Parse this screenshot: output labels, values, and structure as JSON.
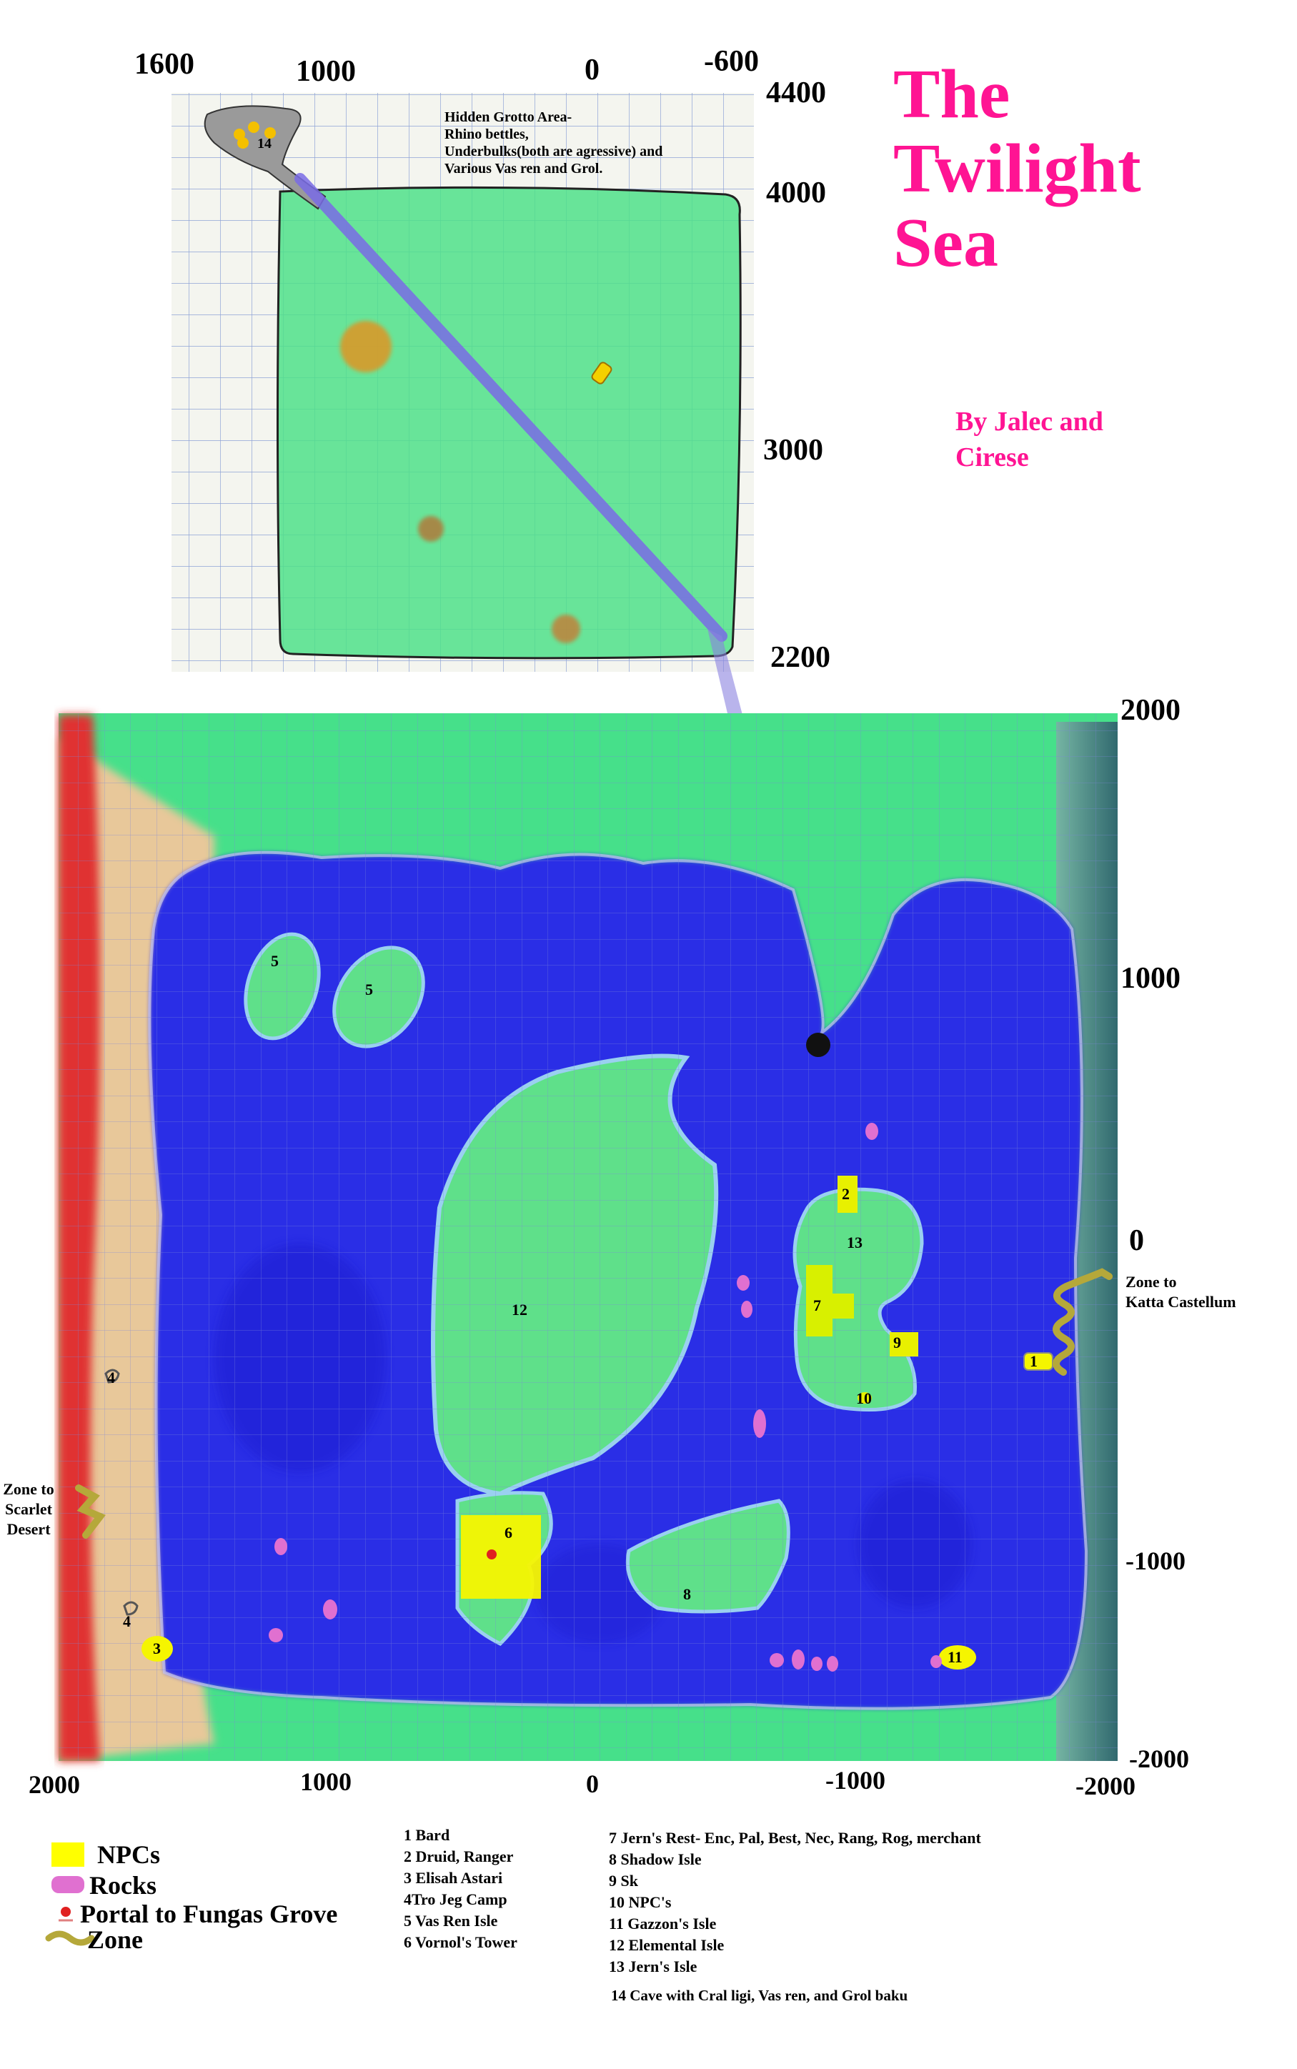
{
  "title": [
    "The",
    "Twilight",
    "Sea"
  ],
  "authors": [
    "By Jalec and",
    "Cirese"
  ],
  "top_map": {
    "x_labels": [
      "1600",
      "1000",
      "0",
      "-600"
    ],
    "y_labels": [
      "4400",
      "4000",
      "3000",
      "2200"
    ],
    "note": [
      "Hidden Grotto Area-",
      "Rhino bettles,",
      "Underbulks(both are agressive) and",
      "Various Vas ren and Grol."
    ],
    "cave_label": "14"
  },
  "main_map": {
    "top_y_labels": [
      "2000",
      "1000",
      "0",
      "-1000",
      "-2000"
    ],
    "bottom_x_labels": [
      "2000",
      "1000",
      "0",
      "-1000",
      "-2000"
    ],
    "zone_right": [
      "Zone to",
      "Katta Castellum"
    ],
    "zone_left": [
      "Zone to",
      "Scarlet",
      "Desert"
    ],
    "markers": {
      "m1": "1",
      "m2": "2",
      "m3": "3",
      "m4a": "4",
      "m4b": "4",
      "m5a": "5",
      "m5b": "5",
      "m6": "6",
      "m7": "7",
      "m8": "8",
      "m9": "9",
      "m10": "10",
      "m11": "11",
      "m12": "12",
      "m13": "13"
    }
  },
  "legend": {
    "npcs": "NPCs",
    "rocks": "Rocks",
    "portal": "Portal to Fungas Grove",
    "zone": "Zone"
  },
  "locations_left": [
    "1 Bard",
    "2 Druid, Ranger",
    "3 Elisah Astari",
    "4Tro Jeg Camp",
    "5 Vas Ren Isle",
    "6 Vornol's Tower"
  ],
  "locations_right": [
    "7 Jern's Rest- Enc, Pal, Best, Nec, Rang, Rog, merchant",
    "8 Shadow Isle",
    "9 Sk",
    "10 NPC's",
    "11 Gazzon's Isle",
    "12 Elemental Isle",
    "13 Jern's Isle"
  ],
  "location_14": "14 Cave with Cral ligi, Vas ren, and Grol baku",
  "colors": {
    "title": "#ff1493",
    "water": "#2a2ee6",
    "land": "#5fe08a",
    "npc": "#f5f500",
    "rock": "#e070d0",
    "zone": "#b5a83a",
    "desert": "#e8c89a",
    "lava": "#e03030",
    "edge": "#3f7a80"
  }
}
